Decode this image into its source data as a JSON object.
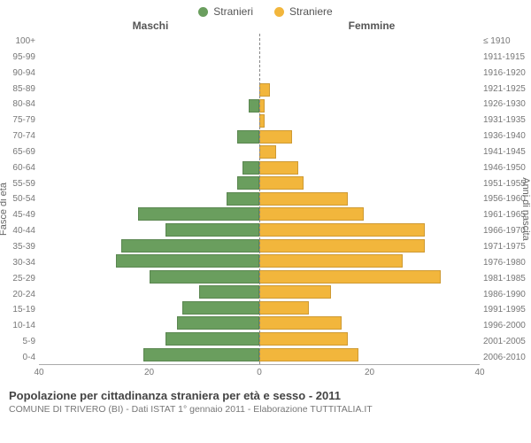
{
  "legend": {
    "male": {
      "label": "Stranieri",
      "color": "#6a9e5e"
    },
    "female": {
      "label": "Straniere",
      "color": "#f2b63c"
    }
  },
  "headers": {
    "male": "Maschi",
    "female": "Femmine"
  },
  "axis_titles": {
    "left": "Fasce di età",
    "right": "Anni di nascita"
  },
  "x_axis": {
    "max": 40,
    "ticks": [
      40,
      20,
      0,
      20,
      40
    ]
  },
  "age_labels": [
    "100+",
    "95-99",
    "90-94",
    "85-89",
    "80-84",
    "75-79",
    "70-74",
    "65-69",
    "60-64",
    "55-59",
    "50-54",
    "45-49",
    "40-44",
    "35-39",
    "30-34",
    "25-29",
    "20-24",
    "15-19",
    "10-14",
    "5-9",
    "0-4"
  ],
  "birth_labels": [
    "≤ 1910",
    "1911-1915",
    "1916-1920",
    "1921-1925",
    "1926-1930",
    "1931-1935",
    "1936-1940",
    "1941-1945",
    "1946-1950",
    "1951-1955",
    "1956-1960",
    "1961-1965",
    "1966-1970",
    "1971-1975",
    "1976-1980",
    "1981-1985",
    "1986-1990",
    "1991-1995",
    "1996-2000",
    "2001-2005",
    "2006-2010"
  ],
  "male_values": [
    0,
    0,
    0,
    0,
    2,
    0,
    4,
    0,
    3,
    4,
    6,
    22,
    17,
    25,
    26,
    20,
    11,
    14,
    15,
    17,
    21
  ],
  "female_values": [
    0,
    0,
    0,
    2,
    1,
    1,
    6,
    3,
    7,
    8,
    16,
    19,
    30,
    30,
    26,
    33,
    13,
    9,
    15,
    16,
    18
  ],
  "colors": {
    "male_bar": "#6a9e5e",
    "female_bar": "#f2b63c",
    "background": "#ffffff",
    "grid": "#e5e5e5"
  },
  "title": "Popolazione per cittadinanza straniera per età e sesso - 2011",
  "subtitle": "COMUNE DI TRIVERO (BI) - Dati ISTAT 1° gennaio 2011 - Elaborazione TUTTITALIA.IT"
}
